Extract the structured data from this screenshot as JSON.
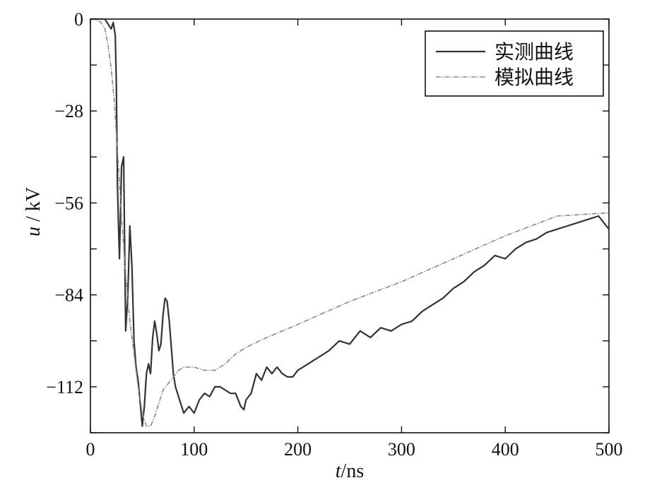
{
  "chart_data": {
    "type": "line",
    "xlabel_italic": "t",
    "xlabel_unit": "/ns",
    "ylabel_italic": "u",
    "ylabel_unit": " / kV",
    "xlim": [
      0,
      500
    ],
    "ylim": [
      -126,
      0
    ],
    "xticks": [
      0,
      100,
      200,
      300,
      400,
      500
    ],
    "yticks": [
      0,
      -28,
      -56,
      -84,
      -112
    ],
    "xtick_labels": [
      "0",
      "100",
      "200",
      "300",
      "400",
      "500"
    ],
    "ytick_labels": [
      "0",
      "−28",
      "−56",
      "−84",
      "−112"
    ],
    "grid": false,
    "legend_position": "top-right",
    "series": [
      {
        "name": "实测曲线",
        "color": "#333333",
        "style": "solid",
        "x": [
          0,
          10,
          14,
          18,
          20,
          22,
          24,
          25,
          26,
          27,
          28,
          30,
          32,
          33,
          34,
          36,
          38,
          40,
          42,
          44,
          46,
          48,
          50,
          52,
          54,
          56,
          58,
          60,
          62,
          64,
          66,
          68,
          70,
          72,
          74,
          76,
          78,
          80,
          82,
          84,
          86,
          88,
          90,
          95,
          100,
          105,
          110,
          115,
          120,
          125,
          130,
          135,
          140,
          145,
          148,
          150,
          155,
          160,
          165,
          170,
          175,
          180,
          185,
          190,
          195,
          200,
          205,
          210,
          215,
          220,
          230,
          240,
          250,
          260,
          270,
          280,
          290,
          300,
          310,
          320,
          330,
          340,
          350,
          360,
          370,
          380,
          390,
          400,
          410,
          420,
          430,
          440,
          450,
          460,
          470,
          480,
          490,
          500
        ],
        "y": [
          0,
          0,
          0,
          -2,
          -3,
          -1,
          -5,
          -20,
          -50,
          -62,
          -73,
          -45,
          -42,
          -68,
          -95,
          -85,
          -63,
          -75,
          -98,
          -106,
          -110,
          -117,
          -124,
          -118,
          -108,
          -105,
          -108,
          -97,
          -92,
          -96,
          -101,
          -99,
          -90,
          -85,
          -86,
          -92,
          -100,
          -108,
          -112,
          -114,
          -116,
          -118,
          -120,
          -118,
          -120,
          -116,
          -114,
          -115,
          -112,
          -112,
          -113,
          -114,
          -114,
          -118,
          -119,
          -116,
          -114,
          -108,
          -110,
          -106,
          -108,
          -106,
          -108,
          -109,
          -109,
          -107,
          -106,
          -105,
          -104,
          -103,
          -101,
          -98,
          -99,
          -95,
          -97,
          -94,
          -95,
          -93,
          -92,
          -89,
          -87,
          -85,
          -82,
          -80,
          -77,
          -75,
          -72,
          -73,
          -70,
          -68,
          -67,
          -65,
          -64,
          -63,
          -62,
          -61,
          -60,
          -64
        ]
      },
      {
        "name": "模拟曲线",
        "color": "#888888",
        "style": "dashdot",
        "x": [
          0,
          5,
          10,
          14,
          17,
          20,
          23,
          26,
          30,
          34,
          38,
          42,
          46,
          50,
          54,
          58,
          62,
          66,
          70,
          75,
          80,
          85,
          90,
          95,
          100,
          110,
          120,
          130,
          140,
          150,
          170,
          200,
          250,
          300,
          350,
          400,
          450,
          500
        ],
        "y": [
          0,
          0,
          -1,
          -3,
          -8,
          -15,
          -25,
          -40,
          -60,
          -78,
          -92,
          -102,
          -112,
          -120,
          -124,
          -124,
          -121,
          -117,
          -113,
          -111,
          -109,
          -107,
          -106,
          -106,
          -106,
          -107,
          -107,
          -105,
          -102,
          -100,
          -97,
          -93,
          -86,
          -80,
          -73,
          -66,
          -60,
          -59
        ]
      }
    ]
  }
}
